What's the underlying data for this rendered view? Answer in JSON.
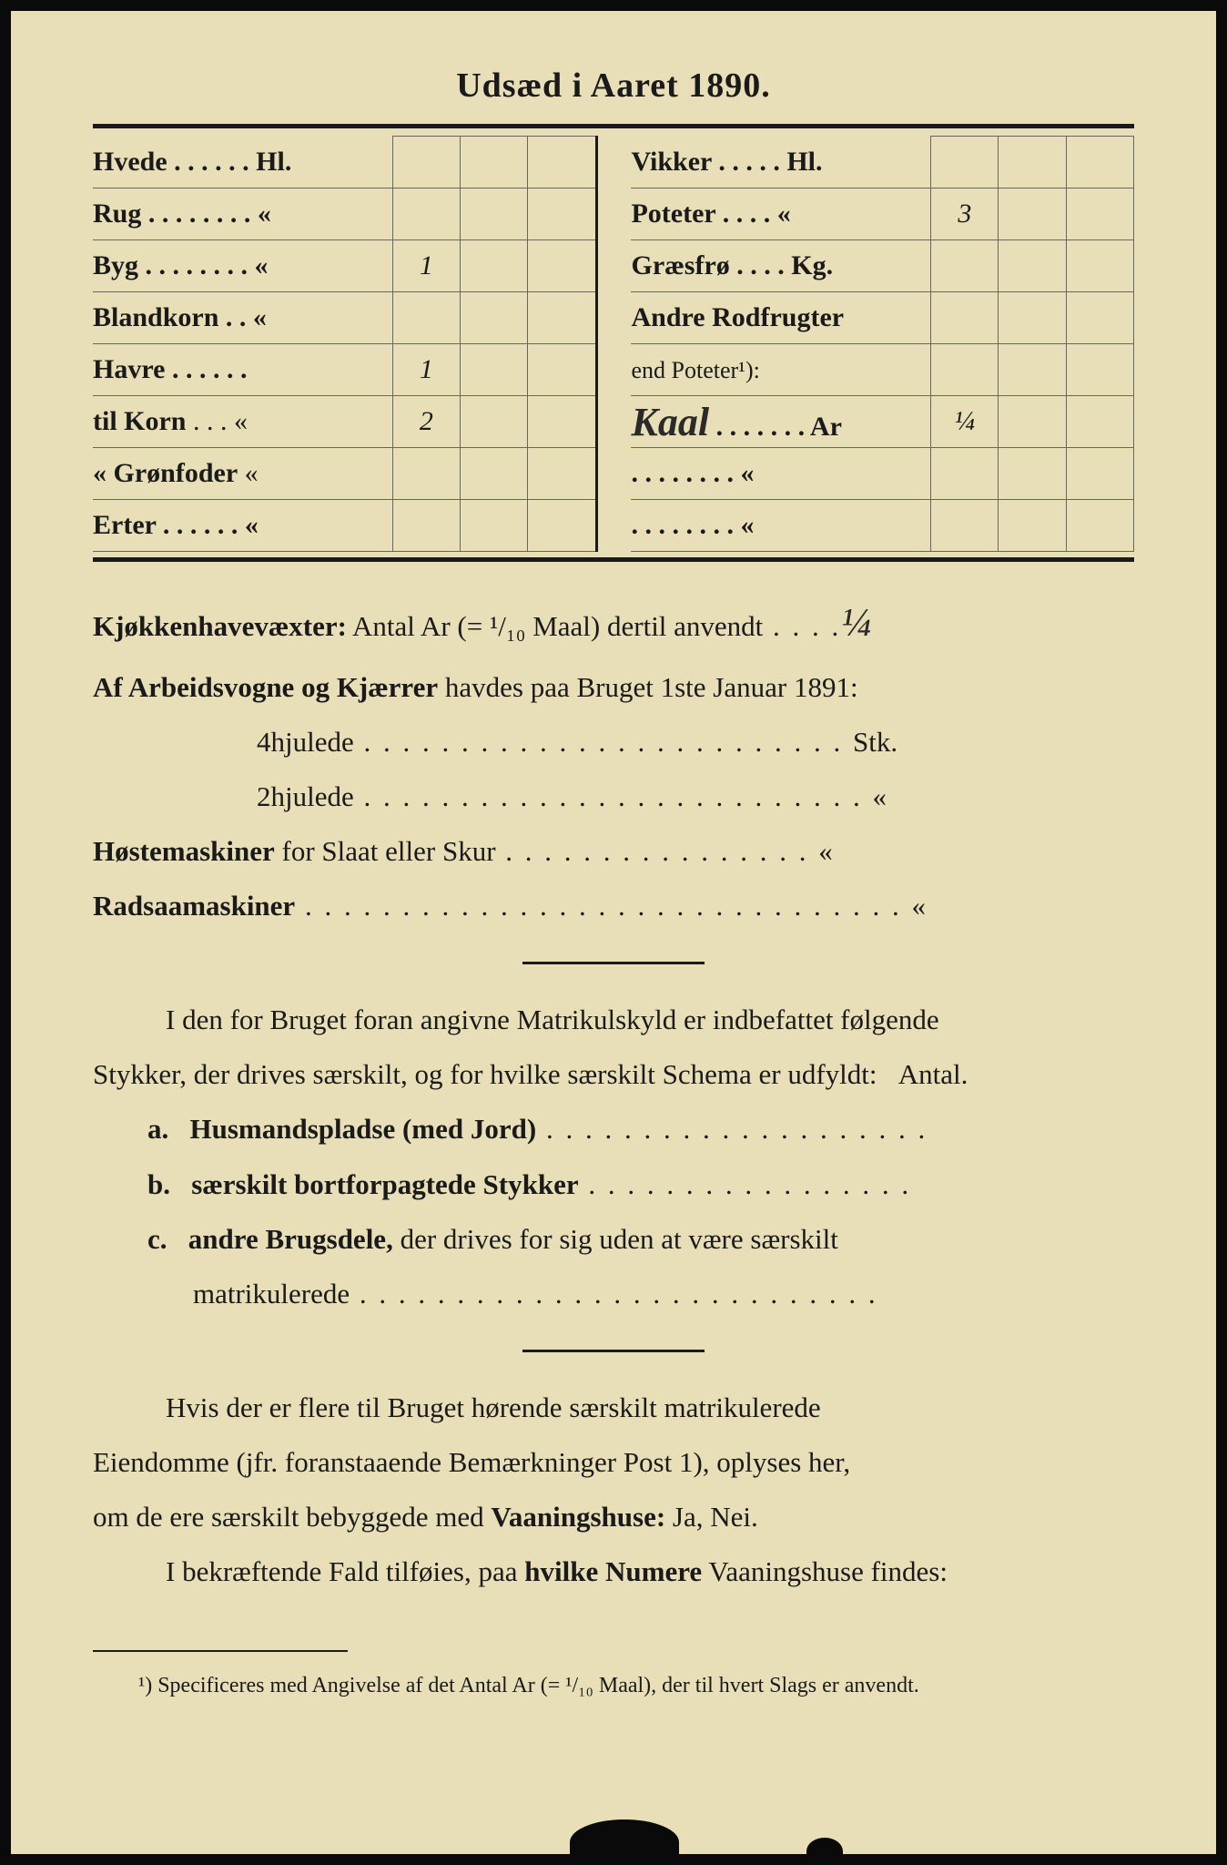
{
  "title": "Udsæd i Aaret 1890.",
  "left_rows": [
    {
      "label": "Hvede",
      "unit": "Hl.",
      "vals": [
        "",
        "",
        ""
      ]
    },
    {
      "label": "Rug",
      "unit": "«",
      "vals": [
        "",
        "",
        ""
      ]
    },
    {
      "label": "Byg",
      "unit": "«",
      "vals": [
        "1",
        "",
        ""
      ]
    },
    {
      "label": "Blandkorn",
      "unit": "«",
      "vals": [
        "",
        "",
        ""
      ]
    },
    {
      "label": "Havre",
      "unit": "",
      "vals": [
        "1",
        "",
        ""
      ]
    },
    {
      "label": "til Korn",
      "unit": "«",
      "vals": [
        "2",
        "",
        ""
      ],
      "sub": true
    },
    {
      "label": "« Grønfoder",
      "unit": "«",
      "vals": [
        "",
        "",
        ""
      ],
      "sub": true
    },
    {
      "label": "Erter",
      "unit": "«",
      "vals": [
        "",
        "",
        ""
      ]
    }
  ],
  "right_rows": [
    {
      "label": "Vikker",
      "unit": "Hl.",
      "vals": [
        "",
        "",
        ""
      ]
    },
    {
      "label": "Poteter",
      "unit": "«",
      "vals": [
        "3",
        "",
        ""
      ]
    },
    {
      "label": "Græsfrø",
      "unit": "Kg.",
      "vals": [
        "",
        "",
        ""
      ]
    },
    {
      "label": "Andre Rodfrugter",
      "unit": "",
      "vals": [
        "",
        "",
        ""
      ]
    },
    {
      "label": "end Poteter¹):",
      "unit": "",
      "vals": [
        "",
        "",
        ""
      ],
      "sub": true,
      "nounit": true
    },
    {
      "label": "Kaal",
      "unit": "Ar",
      "vals": [
        "¼",
        "",
        ""
      ],
      "hw": true
    },
    {
      "label": "",
      "unit": "«",
      "vals": [
        "",
        "",
        ""
      ],
      "dotted": true
    },
    {
      "label": "",
      "unit": "«",
      "vals": [
        "",
        "",
        ""
      ],
      "dotted": true
    }
  ],
  "line_kjokken_prefix": "Kjøkkenhavevæxter:",
  "line_kjokken_text": " Antal Ar (= ¹/₁₀ Maal) dertil anvendt",
  "line_kjokken_val": "¼",
  "line_arbeids_prefix": "Af Arbeidsvogne og Kjærrer",
  "line_arbeids_text": " havdes paa Bruget 1ste Januar 1891:",
  "line_4hj": "4hjulede",
  "line_4hj_unit": "Stk.",
  "line_2hj": "2hjulede",
  "line_2hj_unit": "«",
  "line_hoste_prefix": "Høstemaskiner",
  "line_hoste_text": " for Slaat eller Skur",
  "line_hoste_unit": "«",
  "line_radsaa": "Radsaamaskiner",
  "line_radsaa_unit": "«",
  "para1a": "I den for Bruget foran angivne Matrikulskyld er indbefattet følgende",
  "para1b": "Stykker, der drives særskilt, og for hvilke særskilt Schema er udfyldt:",
  "antal": "Antal.",
  "item_a_letter": "a.",
  "item_a_bold": "Husmandspladse (med Jord)",
  "item_b_letter": "b.",
  "item_b_bold": "særskilt bortforpagtede Stykker",
  "item_c_letter": "c.",
  "item_c_bold": "andre Brugsdele,",
  "item_c_rest": " der drives for sig uden at være særskilt",
  "item_c_line2": "matrikulerede",
  "para2a": "Hvis der er flere til Bruget hørende særskilt matrikulerede",
  "para2b": "Eiendomme (jfr. foranstaaende Bemærkninger Post 1), oplyses her,",
  "para2c": "om de ere særskilt bebyggede med ",
  "para2c_bold": "Vaaningshuse:",
  "para2c_end": " Ja, Nei.",
  "para3a": "I bekræftende Fald tilføies, paa ",
  "para3a_bold": "hvilke Numere",
  "para3a_end": " Vaaningshuse findes:",
  "footnote_marker": "¹)",
  "footnote_text": " Specificeres med Angivelse af det Antal Ar (= ¹/₁₀ Maal), der til hvert Slags er anvendt.",
  "colors": {
    "paper": "#e8dfb8",
    "ink": "#1a1a1a",
    "border": "#666"
  }
}
